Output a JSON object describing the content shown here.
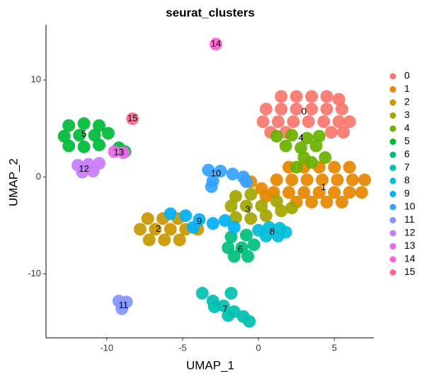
{
  "chart_data": {
    "type": "scatter",
    "title": "seurat_clusters",
    "x_label": "UMAP_1",
    "y_label": "UMAP_2",
    "xlim": [
      -14,
      7.6
    ],
    "ylim": [
      -16.6,
      15.7
    ],
    "xticks": [
      -10,
      -5,
      0,
      5
    ],
    "yticks": [
      -10,
      0,
      10
    ],
    "grid": false,
    "legend": "right",
    "series": [
      {
        "name": "0",
        "color": "#F8766D",
        "center": [
          3.0,
          6.7
        ],
        "x": [
          1.5,
          2.5,
          3.5,
          4.5,
          5.3,
          0.5,
          1.5,
          2.5,
          3.5,
          4.5,
          5.5,
          0.3,
          1.3,
          2.3,
          3.3,
          4.3,
          5.3,
          6.0,
          0.8,
          1.8,
          4.8,
          5.6
        ],
        "y": [
          8.3,
          8.3,
          8.3,
          8.3,
          8.0,
          7.0,
          7.0,
          7.0,
          7.0,
          7.0,
          7.0,
          5.7,
          5.7,
          5.7,
          5.7,
          5.7,
          5.7,
          5.7,
          4.6,
          4.6,
          4.6,
          4.6
        ]
      },
      {
        "name": "1",
        "color": "#E58700",
        "center": [
          4.3,
          -1.1
        ],
        "x": [
          2.0,
          3.0,
          4.0,
          5.0,
          6.0,
          1.2,
          2.2,
          3.2,
          4.2,
          5.2,
          6.2,
          7.0,
          1.0,
          2.0,
          3.0,
          4.0,
          5.0,
          6.0,
          6.8,
          2.5,
          3.5,
          4.5,
          5.5,
          -0.5,
          0.2,
          0.5
        ],
        "y": [
          1.0,
          1.0,
          1.0,
          1.0,
          1.0,
          -0.3,
          -0.3,
          -0.3,
          -0.3,
          -0.3,
          -0.3,
          -0.3,
          -1.6,
          -1.6,
          -1.6,
          -1.6,
          -1.6,
          -1.6,
          -1.6,
          -2.6,
          -2.6,
          -2.6,
          -2.6,
          -0.5,
          -1.2,
          -2.0
        ]
      },
      {
        "name": "2",
        "color": "#C99800",
        "center": [
          -6.6,
          -5.4
        ],
        "x": [
          -7.3,
          -6.3,
          -5.3,
          -7.8,
          -6.8,
          -5.8,
          -4.8,
          -4.0,
          -7.2,
          -6.2,
          -5.2
        ],
        "y": [
          -4.3,
          -4.3,
          -4.3,
          -5.4,
          -5.4,
          -5.4,
          -5.4,
          -5.4,
          -6.5,
          -6.5,
          -6.5
        ]
      },
      {
        "name": "3",
        "color": "#A3A500",
        "center": [
          -0.7,
          -3.4
        ],
        "x": [
          -1.5,
          -0.5,
          -1.8,
          -0.8,
          0.2,
          -1.5,
          -0.5,
          0.5,
          1.5,
          2.2,
          1.2
        ],
        "y": [
          -2.0,
          -1.8,
          -3.0,
          -3.0,
          -3.0,
          -4.2,
          -4.3,
          -4.0,
          -3.5,
          -3.2,
          -2.5
        ]
      },
      {
        "name": "4",
        "color": "#6BB100",
        "center": [
          2.8,
          4.0
        ],
        "x": [
          1.2,
          2.2,
          3.2,
          4.0,
          1.8,
          2.8,
          3.8,
          4.4,
          3.5,
          3.0,
          2.5
        ],
        "y": [
          4.2,
          4.3,
          4.0,
          4.2,
          3.2,
          3.0,
          3.2,
          2.0,
          1.5,
          2.0,
          1.0
        ]
      },
      {
        "name": "5",
        "color": "#00BA38",
        "center": [
          -11.5,
          4.4
        ],
        "x": [
          -12.5,
          -11.5,
          -10.5,
          -12.8,
          -11.8,
          -10.8,
          -9.9,
          -12.5,
          -11.5,
          -10.5,
          -9.2,
          -8.8
        ],
        "y": [
          5.3,
          5.5,
          5.3,
          4.2,
          4.3,
          4.3,
          4.5,
          3.2,
          3.1,
          3.3,
          3.0,
          2.6
        ]
      },
      {
        "name": "6",
        "color": "#00BF7D",
        "center": [
          -1.2,
          -7.5
        ],
        "x": [
          -1.8,
          -0.8,
          -2.0,
          -1.1,
          -0.3,
          -1.6,
          -0.7
        ],
        "y": [
          -6.2,
          -6.0,
          -7.3,
          -7.3,
          -7.0,
          -8.2,
          -8.2
        ]
      },
      {
        "name": "7",
        "color": "#00C0AF",
        "center": [
          -2.2,
          -13.7
        ],
        "x": [
          -3.7,
          -3.0,
          -2.3,
          -1.6,
          -1.0,
          -0.6,
          -2.0,
          -2.9,
          -1.8
        ],
        "y": [
          -12.0,
          -12.8,
          -13.3,
          -13.9,
          -14.4,
          -14.9,
          -14.3,
          -13.4,
          -12.0
        ]
      },
      {
        "name": "8",
        "color": "#00BCD8",
        "center": [
          0.9,
          -5.7
        ],
        "x": [
          0.0,
          0.7,
          1.4,
          0.5,
          1.3,
          1.8
        ],
        "y": [
          -5.5,
          -5.2,
          -5.3,
          -6.1,
          -6.1,
          -5.7
        ]
      },
      {
        "name": "9",
        "color": "#00B0F6",
        "center": [
          -3.9,
          -4.6
        ],
        "x": [
          -5.8,
          -4.8,
          -3.9,
          -3.0,
          -2.2,
          -1.6,
          -4.3
        ],
        "y": [
          -3.8,
          -4.0,
          -4.4,
          -4.8,
          -4.5,
          -5.2,
          -5.2
        ]
      },
      {
        "name": "10",
        "color": "#35A2FF",
        "center": [
          -2.8,
          0.3
        ],
        "x": [
          -3.3,
          -2.5,
          -1.7,
          -1.0,
          -0.8,
          -3.0,
          -3.1
        ],
        "y": [
          0.7,
          0.6,
          0.3,
          0.0,
          -0.5,
          -0.4,
          -1.0
        ]
      },
      {
        "name": "11",
        "color": "#8494FF",
        "center": [
          -8.9,
          -13.3
        ],
        "x": [
          -9.2,
          -8.7,
          -9.0
        ],
        "y": [
          -12.8,
          -12.9,
          -13.6
        ]
      },
      {
        "name": "12",
        "color": "#C77CFF",
        "center": [
          -11.5,
          0.8
        ],
        "x": [
          -11.9,
          -11.2,
          -11.6,
          -10.9,
          -10.5
        ],
        "y": [
          1.2,
          1.3,
          0.5,
          0.6,
          1.4
        ]
      },
      {
        "name": "13",
        "color": "#ED68ED",
        "center": [
          -9.2,
          2.5
        ],
        "x": [
          -9.5,
          -8.9
        ],
        "y": [
          2.6,
          2.5
        ]
      },
      {
        "name": "14",
        "color": "#FF61CC",
        "center": [
          -2.8,
          13.7
        ],
        "x": [
          -2.8
        ],
        "y": [
          13.7
        ]
      },
      {
        "name": "15",
        "color": "#FF6C91",
        "center": [
          -8.3,
          6.0
        ],
        "x": [
          -8.3
        ],
        "y": [
          6.0
        ]
      }
    ]
  }
}
